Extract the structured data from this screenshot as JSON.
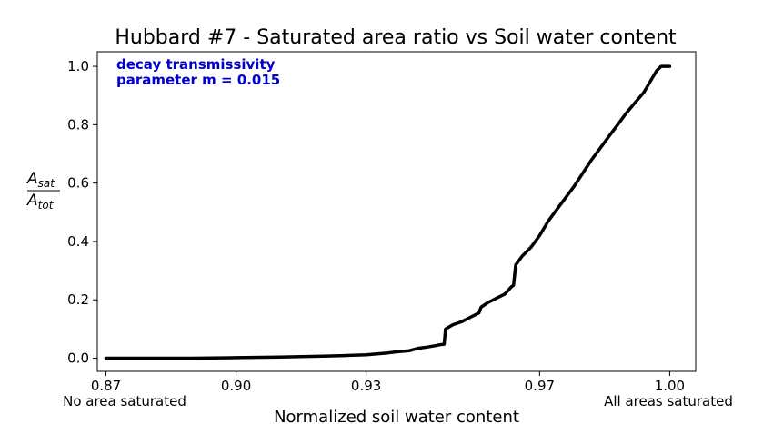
{
  "chart_data": {
    "type": "line",
    "title": "Hubbard #7 - Saturated area ratio vs Soil water content",
    "xlabel": "Normalized soil water content",
    "ylabel_numerator": "A",
    "ylabel_numerator_sub": "sat",
    "ylabel_denominator": "A",
    "ylabel_denominator_sub": "tot",
    "xlim": [
      0.868,
      1.006
    ],
    "ylim": [
      -0.045,
      1.05
    ],
    "xticks": [
      0.87,
      0.9,
      0.93,
      0.97,
      1.0
    ],
    "xtick_labels": [
      "0.87",
      "0.90",
      "0.93",
      "0.97",
      "1.00"
    ],
    "yticks": [
      0.0,
      0.2,
      0.4,
      0.6,
      0.8,
      1.0
    ],
    "ytick_labels": [
      "0.0",
      "0.2",
      "0.4",
      "0.6",
      "0.8",
      "1.0"
    ],
    "x_end_labels": {
      "left": "No area saturated",
      "right": "All areas saturated"
    },
    "annotation": [
      "decay transmissivity",
      "parameter m = 0.015"
    ],
    "grid": false,
    "series": [
      {
        "color": "#000000",
        "x": [
          0.87,
          0.88,
          0.89,
          0.9,
          0.91,
          0.92,
          0.925,
          0.93,
          0.935,
          0.937,
          0.94,
          0.942,
          0.944,
          0.946,
          0.947,
          0.948,
          0.9483,
          0.95,
          0.952,
          0.954,
          0.956,
          0.9565,
          0.958,
          0.96,
          0.962,
          0.9635,
          0.964,
          0.9645,
          0.966,
          0.968,
          0.97,
          0.972,
          0.974,
          0.976,
          0.978,
          0.98,
          0.982,
          0.984,
          0.986,
          0.988,
          0.99,
          0.992,
          0.994,
          0.996,
          0.997,
          0.998,
          1.0
        ],
        "y": [
          0.0,
          0.0,
          0.0,
          0.002,
          0.004,
          0.007,
          0.009,
          0.012,
          0.018,
          0.022,
          0.026,
          0.034,
          0.038,
          0.043,
          0.046,
          0.048,
          0.1,
          0.115,
          0.125,
          0.14,
          0.155,
          0.175,
          0.19,
          0.205,
          0.22,
          0.245,
          0.25,
          0.32,
          0.35,
          0.38,
          0.42,
          0.47,
          0.51,
          0.55,
          0.59,
          0.635,
          0.68,
          0.72,
          0.76,
          0.8,
          0.84,
          0.875,
          0.91,
          0.96,
          0.985,
          1.0,
          1.0
        ]
      }
    ]
  }
}
